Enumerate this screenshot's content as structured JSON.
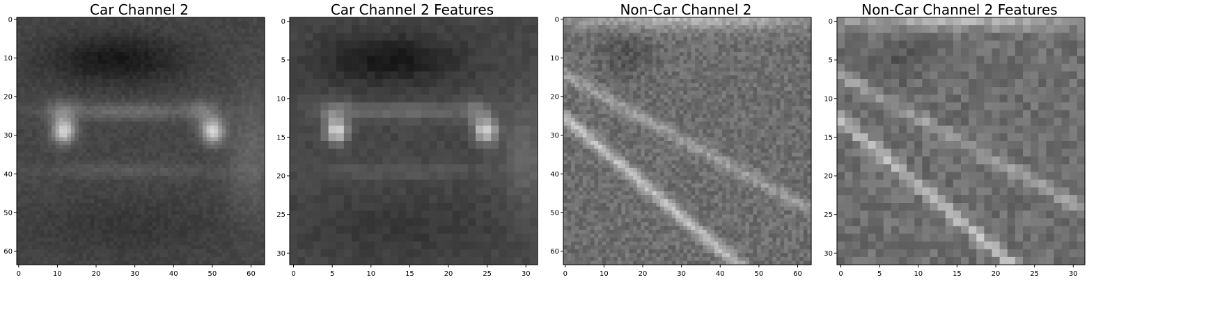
{
  "panels": [
    {
      "title": "Car Channel 2",
      "size": 64,
      "ticks": [
        0,
        10,
        20,
        30,
        40,
        50,
        60
      ],
      "scene": "car",
      "seed": 11
    },
    {
      "title": "Car Channel 2 Features",
      "size": 32,
      "ticks": [
        0,
        5,
        10,
        15,
        20,
        25,
        30
      ],
      "scene": "car",
      "seed": 23
    },
    {
      "title": "Non-Car Channel 2",
      "size": 64,
      "ticks": [
        0,
        10,
        20,
        30,
        40,
        50,
        60
      ],
      "scene": "road",
      "seed": 37
    },
    {
      "title": "Non-Car Channel 2 Features",
      "size": 32,
      "ticks": [
        0,
        5,
        10,
        15,
        20,
        25,
        30
      ],
      "scene": "road",
      "seed": 41
    }
  ],
  "colormap": "gray"
}
